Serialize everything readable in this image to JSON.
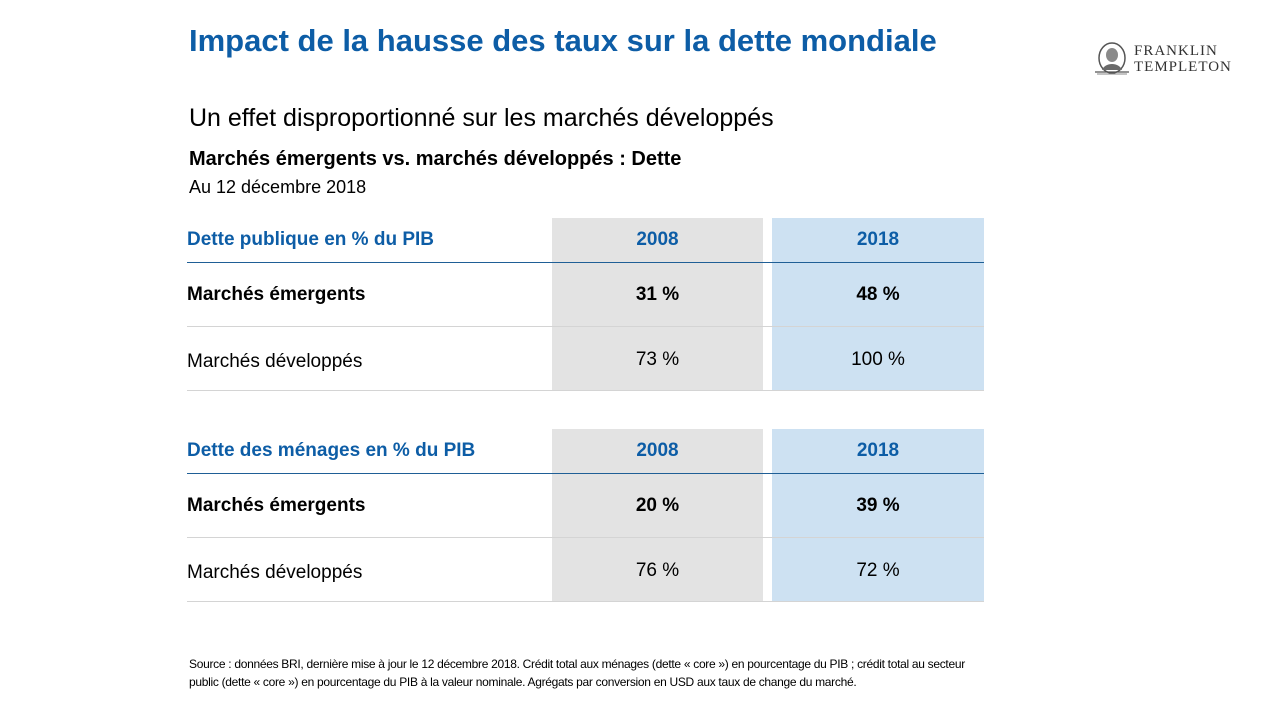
{
  "header": {
    "title": "Impact de la hausse des taux sur la dette mondiale",
    "subtitle": "Un effet disproportionné sur les marchés développés",
    "section_heading": "Marchés émergents vs. marchés développés : Dette",
    "as_of": "Au 12 décembre 2018"
  },
  "logo": {
    "line1": "FRANKLIN",
    "line2": "TEMPLETON",
    "icon": "portrait-medallion-icon"
  },
  "colors": {
    "title_blue": "#0d5da6",
    "col_2008_bg": "#e3e3e3",
    "col_2018_bg": "#cde1f2"
  },
  "tables": [
    {
      "header": [
        "Dette publique en % du PIB",
        "2008",
        "2018"
      ],
      "rows": [
        [
          "Marchés émergents",
          "31 %",
          "48 %"
        ],
        [
          "Marchés développés",
          "73 %",
          "100 %"
        ]
      ]
    },
    {
      "header": [
        "Dette des ménages en % du PIB",
        "2008",
        "2018"
      ],
      "rows": [
        [
          "Marchés émergents",
          "20 %",
          "39 %"
        ],
        [
          "Marchés développés",
          "76 %",
          "72 %"
        ]
      ]
    }
  ],
  "footnote": "Source : données BRI, dernière mise à jour le 12 décembre 2018. Crédit total aux ménages (dette « core ») en pourcentage du PIB ; crédit total au secteur public (dette « core ») en pourcentage du PIB à la valeur nominale. Agrégats par conversion en USD aux taux de change du marché."
}
